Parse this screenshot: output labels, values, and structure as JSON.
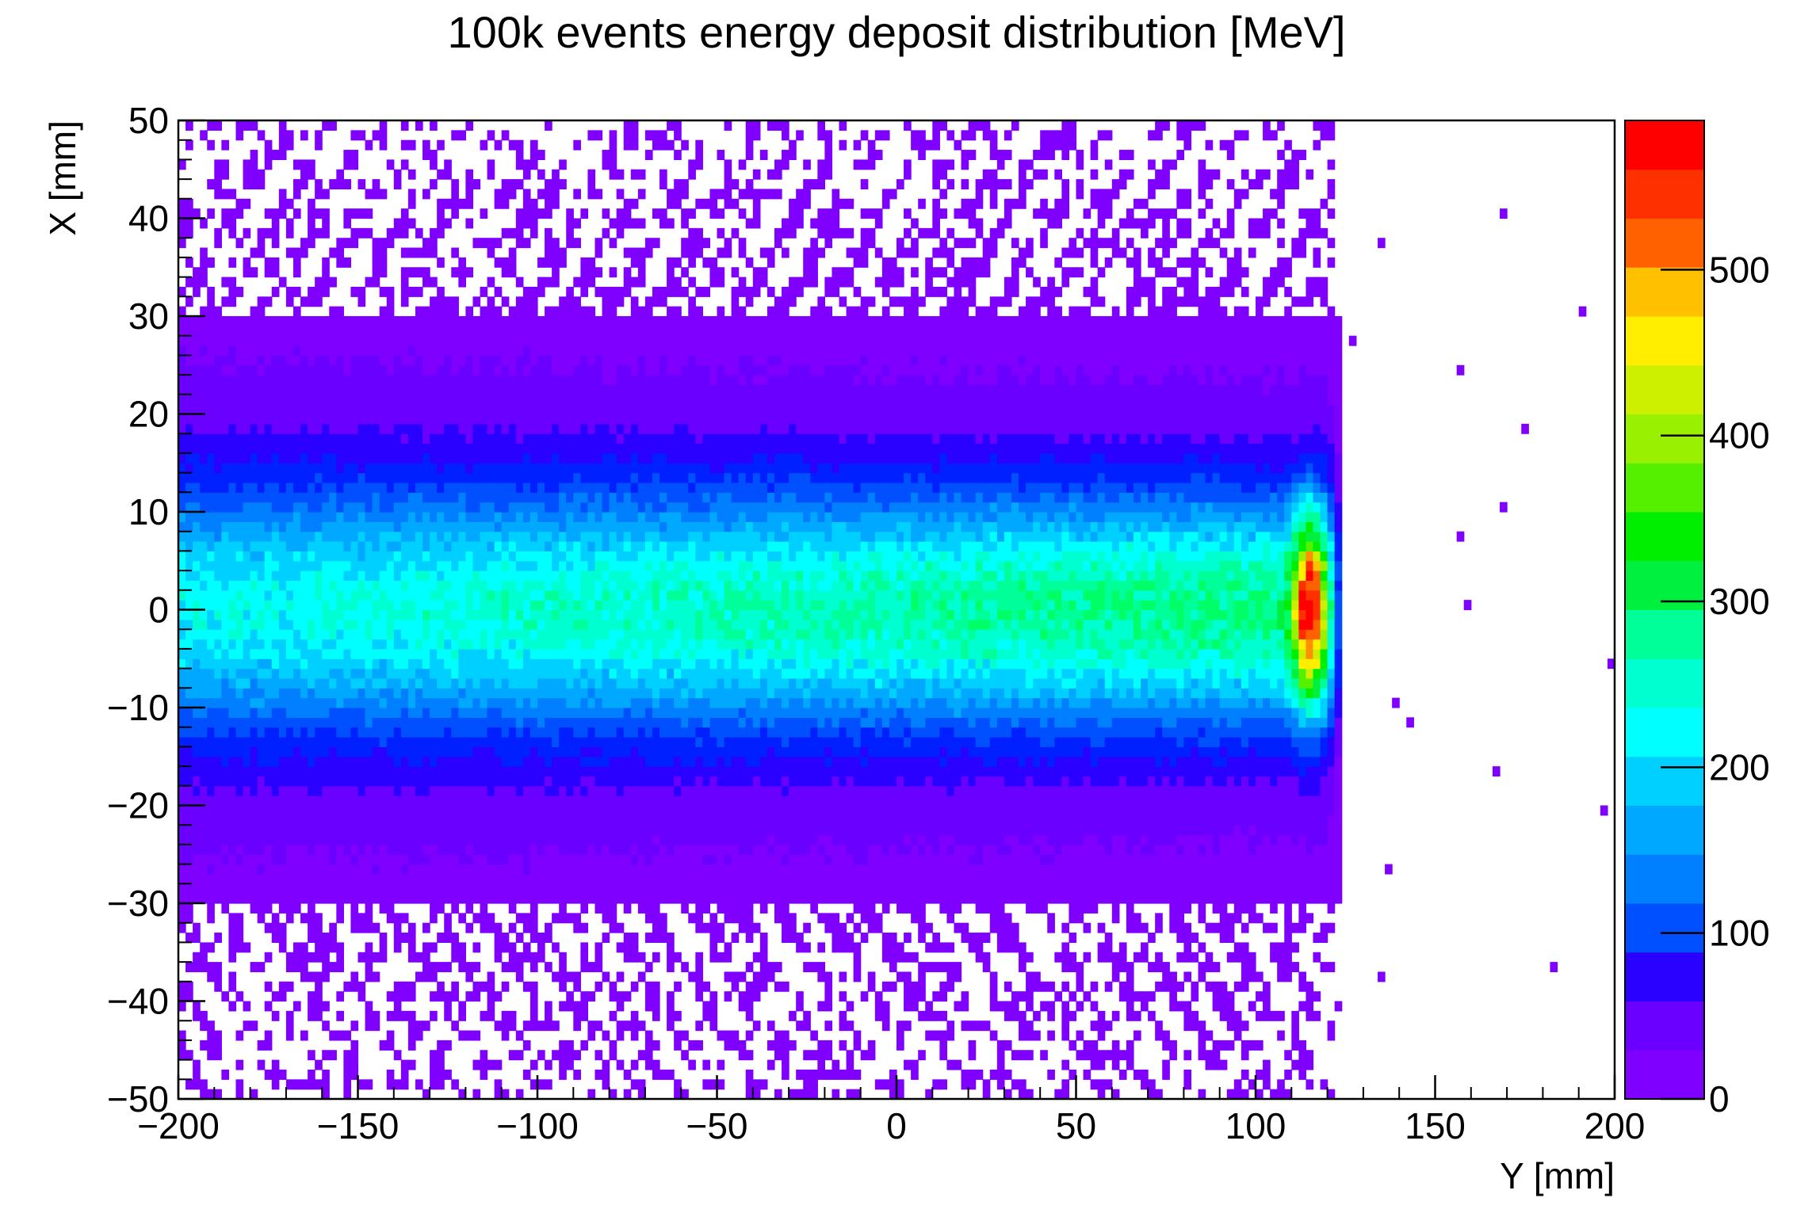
{
  "chart_data": {
    "type": "heatmap",
    "title": "100k events energy deposit distribution [MeV]",
    "xlabel": "Y [mm]",
    "ylabel": "X [mm]",
    "xlim": [
      -200,
      200
    ],
    "ylim": [
      -50,
      50
    ],
    "zlim": [
      0,
      590
    ],
    "x_ticks": [
      -200,
      -150,
      -100,
      -50,
      0,
      50,
      100,
      150,
      200
    ],
    "x_tick_labels": [
      "−200",
      "−150",
      "−100",
      "−50",
      "0",
      "50",
      "100",
      "150",
      "200"
    ],
    "y_ticks": [
      -50,
      -40,
      -30,
      -20,
      -10,
      0,
      10,
      20,
      30,
      40,
      50
    ],
    "y_tick_labels": [
      "−50",
      "−40",
      "−30",
      "−20",
      "−10",
      "0",
      "10",
      "20",
      "30",
      "40",
      "50"
    ],
    "z_ticks": [
      0,
      100,
      200,
      300,
      400,
      500
    ],
    "z_tick_labels": [
      "0",
      "100",
      "200",
      "300",
      "400",
      "500"
    ],
    "colorbar_levels": 20,
    "palette": [
      "#7f00ff",
      "#6a00ff",
      "#2a00ff",
      "#0020ff",
      "#0050ff",
      "#0080ff",
      "#00a8ff",
      "#00d0ff",
      "#00ffff",
      "#00ffd0",
      "#00ff99",
      "#00ff66",
      "#00f040",
      "#00ee00",
      "#55f000",
      "#99f000",
      "#ccf000",
      "#ffee00",
      "#ffc000",
      "#ff9000",
      "#ff6000",
      "#ff3000",
      "#ff0000"
    ],
    "binning": {
      "nx": 200,
      "ny": 100,
      "x_bin_width": 2,
      "y_bin_width": 1
    },
    "distribution": {
      "description": "beam core along X=0 from Y=-200 to ~120 mm, Bragg-like peak near Y=115 mm",
      "core_edep_near_y_minus200": 200,
      "core_edep_near_y_100": 260,
      "peak_y": 115,
      "peak_x": 0,
      "peak_edep": 590,
      "falloff_end_y": 122,
      "halo_x_extent": 30
    }
  }
}
